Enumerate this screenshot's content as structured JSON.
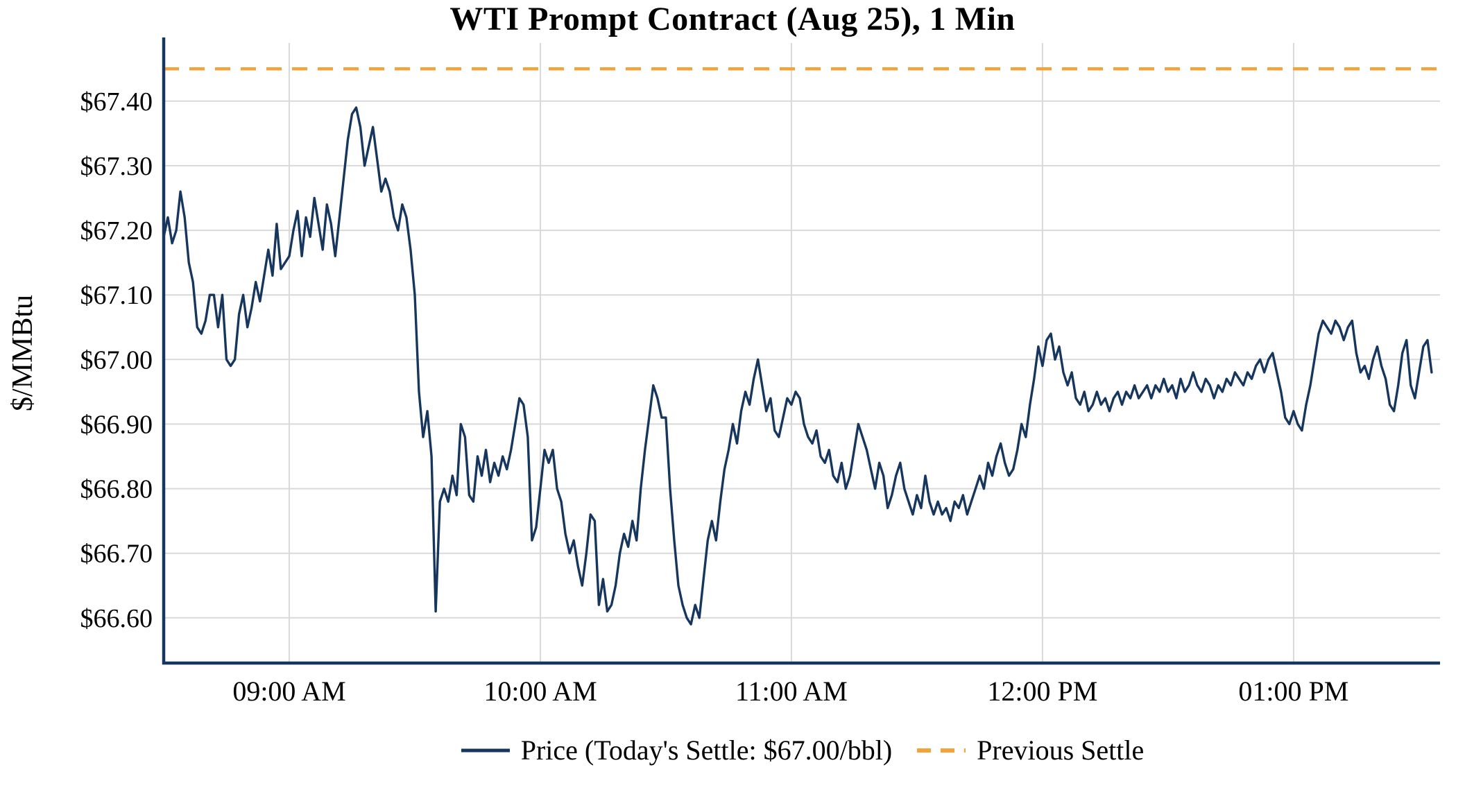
{
  "colors": {
    "price_line": "#17365d",
    "previous_settle": "#f6a23a",
    "grid": "#d9d9d9",
    "axis": "#17365d",
    "text": "#000000",
    "background": "#ffffff"
  },
  "chart_data": {
    "type": "line",
    "title": "WTI Prompt Contract (Aug 25), 1 Min",
    "xlabel": "",
    "ylabel": "$/MMBtu",
    "ylim": [
      66.53,
      67.49
    ],
    "y_ticks": [
      66.6,
      66.7,
      66.8,
      66.9,
      67.0,
      67.1,
      67.2,
      67.3,
      67.4
    ],
    "y_tick_labels": [
      "$66.60",
      "$66.70",
      "$66.80",
      "$66.90",
      "$67.00",
      "$67.10",
      "$67.20",
      "$67.30",
      "$67.40"
    ],
    "x_domain_minutes": [
      0,
      305
    ],
    "x_minutes_origin": "approx. 08:30 AM (estimated from tick spacing)",
    "x_ticks": [
      {
        "minute": 30,
        "label": "09:00 AM"
      },
      {
        "minute": 90,
        "label": "10:00 AM"
      },
      {
        "minute": 150,
        "label": "11:00 AM"
      },
      {
        "minute": 210,
        "label": "12:00 PM"
      },
      {
        "minute": 270,
        "label": "01:00 PM"
      }
    ],
    "grid": true,
    "previous_settle": 67.45,
    "todays_settle": 67.0,
    "legend": {
      "position": "bottom",
      "entries": [
        {
          "label": "Price (Today's Settle: $67.00/bbl)",
          "style": "solid"
        },
        {
          "label": "Previous Settle",
          "style": "dashed"
        }
      ]
    },
    "series": [
      {
        "name": "Price",
        "points": [
          [
            0,
            67.19
          ],
          [
            1,
            67.22
          ],
          [
            2,
            67.18
          ],
          [
            3,
            67.2
          ],
          [
            4,
            67.26
          ],
          [
            5,
            67.22
          ],
          [
            6,
            67.15
          ],
          [
            7,
            67.12
          ],
          [
            8,
            67.05
          ],
          [
            9,
            67.04
          ],
          [
            10,
            67.06
          ],
          [
            11,
            67.1
          ],
          [
            12,
            67.1
          ],
          [
            13,
            67.05
          ],
          [
            14,
            67.1
          ],
          [
            15,
            67.0
          ],
          [
            16,
            66.99
          ],
          [
            17,
            67.0
          ],
          [
            18,
            67.07
          ],
          [
            19,
            67.1
          ],
          [
            20,
            67.05
          ],
          [
            21,
            67.08
          ],
          [
            22,
            67.12
          ],
          [
            23,
            67.09
          ],
          [
            24,
            67.13
          ],
          [
            25,
            67.17
          ],
          [
            26,
            67.13
          ],
          [
            27,
            67.21
          ],
          [
            28,
            67.14
          ],
          [
            29,
            67.15
          ],
          [
            30,
            67.16
          ],
          [
            31,
            67.2
          ],
          [
            32,
            67.23
          ],
          [
            33,
            67.16
          ],
          [
            34,
            67.22
          ],
          [
            35,
            67.19
          ],
          [
            36,
            67.25
          ],
          [
            37,
            67.21
          ],
          [
            38,
            67.17
          ],
          [
            39,
            67.24
          ],
          [
            40,
            67.21
          ],
          [
            41,
            67.16
          ],
          [
            42,
            67.22
          ],
          [
            43,
            67.28
          ],
          [
            44,
            67.34
          ],
          [
            45,
            67.38
          ],
          [
            46,
            67.39
          ],
          [
            47,
            67.36
          ],
          [
            48,
            67.3
          ],
          [
            49,
            67.33
          ],
          [
            50,
            67.36
          ],
          [
            51,
            67.31
          ],
          [
            52,
            67.26
          ],
          [
            53,
            67.28
          ],
          [
            54,
            67.26
          ],
          [
            55,
            67.22
          ],
          [
            56,
            67.2
          ],
          [
            57,
            67.24
          ],
          [
            58,
            67.22
          ],
          [
            59,
            67.17
          ],
          [
            60,
            67.1
          ],
          [
            61,
            66.95
          ],
          [
            62,
            66.88
          ],
          [
            63,
            66.92
          ],
          [
            64,
            66.85
          ],
          [
            65,
            66.61
          ],
          [
            66,
            66.78
          ],
          [
            67,
            66.8
          ],
          [
            68,
            66.78
          ],
          [
            69,
            66.82
          ],
          [
            70,
            66.79
          ],
          [
            71,
            66.9
          ],
          [
            72,
            66.88
          ],
          [
            73,
            66.79
          ],
          [
            74,
            66.78
          ],
          [
            75,
            66.85
          ],
          [
            76,
            66.82
          ],
          [
            77,
            66.86
          ],
          [
            78,
            66.81
          ],
          [
            79,
            66.84
          ],
          [
            80,
            66.82
          ],
          [
            81,
            66.85
          ],
          [
            82,
            66.83
          ],
          [
            83,
            66.86
          ],
          [
            84,
            66.9
          ],
          [
            85,
            66.94
          ],
          [
            86,
            66.93
          ],
          [
            87,
            66.88
          ],
          [
            88,
            66.72
          ],
          [
            89,
            66.74
          ],
          [
            90,
            66.8
          ],
          [
            91,
            66.86
          ],
          [
            92,
            66.84
          ],
          [
            93,
            66.86
          ],
          [
            94,
            66.8
          ],
          [
            95,
            66.78
          ],
          [
            96,
            66.73
          ],
          [
            97,
            66.7
          ],
          [
            98,
            66.72
          ],
          [
            99,
            66.68
          ],
          [
            100,
            66.65
          ],
          [
            101,
            66.7
          ],
          [
            102,
            66.76
          ],
          [
            103,
            66.75
          ],
          [
            104,
            66.62
          ],
          [
            105,
            66.66
          ],
          [
            106,
            66.61
          ],
          [
            107,
            66.62
          ],
          [
            108,
            66.65
          ],
          [
            109,
            66.7
          ],
          [
            110,
            66.73
          ],
          [
            111,
            66.71
          ],
          [
            112,
            66.75
          ],
          [
            113,
            66.72
          ],
          [
            114,
            66.8
          ],
          [
            115,
            66.86
          ],
          [
            116,
            66.91
          ],
          [
            117,
            66.96
          ],
          [
            118,
            66.94
          ],
          [
            119,
            66.91
          ],
          [
            120,
            66.91
          ],
          [
            121,
            66.8
          ],
          [
            122,
            66.72
          ],
          [
            123,
            66.65
          ],
          [
            124,
            66.62
          ],
          [
            125,
            66.6
          ],
          [
            126,
            66.59
          ],
          [
            127,
            66.62
          ],
          [
            128,
            66.6
          ],
          [
            129,
            66.66
          ],
          [
            130,
            66.72
          ],
          [
            131,
            66.75
          ],
          [
            132,
            66.72
          ],
          [
            133,
            66.78
          ],
          [
            134,
            66.83
          ],
          [
            135,
            66.86
          ],
          [
            136,
            66.9
          ],
          [
            137,
            66.87
          ],
          [
            138,
            66.92
          ],
          [
            139,
            66.95
          ],
          [
            140,
            66.93
          ],
          [
            141,
            66.97
          ],
          [
            142,
            67.0
          ],
          [
            143,
            66.96
          ],
          [
            144,
            66.92
          ],
          [
            145,
            66.94
          ],
          [
            146,
            66.89
          ],
          [
            147,
            66.88
          ],
          [
            148,
            66.91
          ],
          [
            149,
            66.94
          ],
          [
            150,
            66.93
          ],
          [
            151,
            66.95
          ],
          [
            152,
            66.94
          ],
          [
            153,
            66.9
          ],
          [
            154,
            66.88
          ],
          [
            155,
            66.87
          ],
          [
            156,
            66.89
          ],
          [
            157,
            66.85
          ],
          [
            158,
            66.84
          ],
          [
            159,
            66.86
          ],
          [
            160,
            66.82
          ],
          [
            161,
            66.81
          ],
          [
            162,
            66.84
          ],
          [
            163,
            66.8
          ],
          [
            164,
            66.82
          ],
          [
            165,
            66.86
          ],
          [
            166,
            66.9
          ],
          [
            167,
            66.88
          ],
          [
            168,
            66.86
          ],
          [
            169,
            66.83
          ],
          [
            170,
            66.8
          ],
          [
            171,
            66.84
          ],
          [
            172,
            66.82
          ],
          [
            173,
            66.77
          ],
          [
            174,
            66.79
          ],
          [
            175,
            66.82
          ],
          [
            176,
            66.84
          ],
          [
            177,
            66.8
          ],
          [
            178,
            66.78
          ],
          [
            179,
            66.76
          ],
          [
            180,
            66.79
          ],
          [
            181,
            66.77
          ],
          [
            182,
            66.82
          ],
          [
            183,
            66.78
          ],
          [
            184,
            66.76
          ],
          [
            185,
            66.78
          ],
          [
            186,
            66.76
          ],
          [
            187,
            66.77
          ],
          [
            188,
            66.75
          ],
          [
            189,
            66.78
          ],
          [
            190,
            66.77
          ],
          [
            191,
            66.79
          ],
          [
            192,
            66.76
          ],
          [
            193,
            66.78
          ],
          [
            194,
            66.8
          ],
          [
            195,
            66.82
          ],
          [
            196,
            66.8
          ],
          [
            197,
            66.84
          ],
          [
            198,
            66.82
          ],
          [
            199,
            66.85
          ],
          [
            200,
            66.87
          ],
          [
            201,
            66.84
          ],
          [
            202,
            66.82
          ],
          [
            203,
            66.83
          ],
          [
            204,
            66.86
          ],
          [
            205,
            66.9
          ],
          [
            206,
            66.88
          ],
          [
            207,
            66.93
          ],
          [
            208,
            66.97
          ],
          [
            209,
            67.02
          ],
          [
            210,
            66.99
          ],
          [
            211,
            67.03
          ],
          [
            212,
            67.04
          ],
          [
            213,
            67.0
          ],
          [
            214,
            67.02
          ],
          [
            215,
            66.98
          ],
          [
            216,
            66.96
          ],
          [
            217,
            66.98
          ],
          [
            218,
            66.94
          ],
          [
            219,
            66.93
          ],
          [
            220,
            66.95
          ],
          [
            221,
            66.92
          ],
          [
            222,
            66.93
          ],
          [
            223,
            66.95
          ],
          [
            224,
            66.93
          ],
          [
            225,
            66.94
          ],
          [
            226,
            66.92
          ],
          [
            227,
            66.94
          ],
          [
            228,
            66.95
          ],
          [
            229,
            66.93
          ],
          [
            230,
            66.95
          ],
          [
            231,
            66.94
          ],
          [
            232,
            66.96
          ],
          [
            233,
            66.94
          ],
          [
            234,
            66.95
          ],
          [
            235,
            66.96
          ],
          [
            236,
            66.94
          ],
          [
            237,
            66.96
          ],
          [
            238,
            66.95
          ],
          [
            239,
            66.97
          ],
          [
            240,
            66.95
          ],
          [
            241,
            66.96
          ],
          [
            242,
            66.94
          ],
          [
            243,
            66.97
          ],
          [
            244,
            66.95
          ],
          [
            245,
            66.96
          ],
          [
            246,
            66.98
          ],
          [
            247,
            66.96
          ],
          [
            248,
            66.95
          ],
          [
            249,
            66.97
          ],
          [
            250,
            66.96
          ],
          [
            251,
            66.94
          ],
          [
            252,
            66.96
          ],
          [
            253,
            66.95
          ],
          [
            254,
            66.97
          ],
          [
            255,
            66.96
          ],
          [
            256,
            66.98
          ],
          [
            257,
            66.97
          ],
          [
            258,
            66.96
          ],
          [
            259,
            66.98
          ],
          [
            260,
            66.97
          ],
          [
            261,
            66.99
          ],
          [
            262,
            67.0
          ],
          [
            263,
            66.98
          ],
          [
            264,
            67.0
          ],
          [
            265,
            67.01
          ],
          [
            266,
            66.98
          ],
          [
            267,
            66.95
          ],
          [
            268,
            66.91
          ],
          [
            269,
            66.9
          ],
          [
            270,
            66.92
          ],
          [
            271,
            66.9
          ],
          [
            272,
            66.89
          ],
          [
            273,
            66.93
          ],
          [
            274,
            66.96
          ],
          [
            275,
            67.0
          ],
          [
            276,
            67.04
          ],
          [
            277,
            67.06
          ],
          [
            278,
            67.05
          ],
          [
            279,
            67.04
          ],
          [
            280,
            67.06
          ],
          [
            281,
            67.05
          ],
          [
            282,
            67.03
          ],
          [
            283,
            67.05
          ],
          [
            284,
            67.06
          ],
          [
            285,
            67.01
          ],
          [
            286,
            66.98
          ],
          [
            287,
            66.99
          ],
          [
            288,
            66.97
          ],
          [
            289,
            67.0
          ],
          [
            290,
            67.02
          ],
          [
            291,
            66.99
          ],
          [
            292,
            66.97
          ],
          [
            293,
            66.93
          ],
          [
            294,
            66.92
          ],
          [
            295,
            66.96
          ],
          [
            296,
            67.01
          ],
          [
            297,
            67.03
          ],
          [
            298,
            66.96
          ],
          [
            299,
            66.94
          ],
          [
            300,
            66.98
          ],
          [
            301,
            67.02
          ],
          [
            302,
            67.03
          ],
          [
            303,
            66.98
          ]
        ]
      }
    ]
  }
}
